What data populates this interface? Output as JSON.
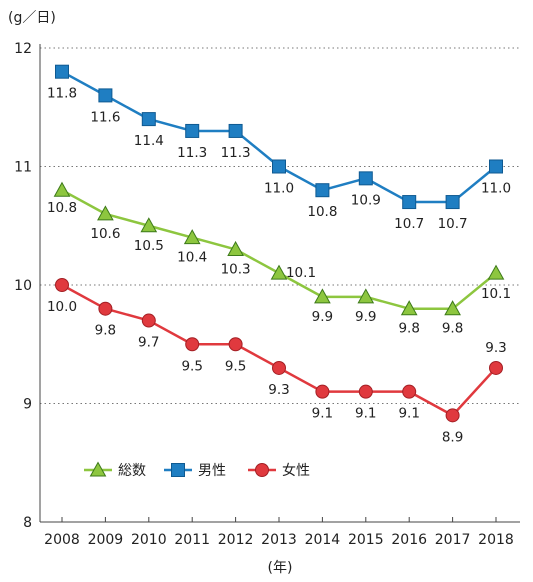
{
  "chart_data": {
    "type": "line",
    "y_unit_label": "(g／日)",
    "x_unit_label": "(年)",
    "ylim": [
      8,
      12
    ],
    "y_ticks": [
      "8",
      "9",
      "10",
      "11",
      "12"
    ],
    "categories": [
      "2008",
      "2009",
      "2010",
      "2011",
      "2012",
      "2013",
      "2014",
      "2015",
      "2016",
      "2017",
      "2018"
    ],
    "grid": "horizontal dotted",
    "legend_position": "lower-left inside plot",
    "series": [
      {
        "name": "総数",
        "color": "#8dc63f",
        "marker": "triangle",
        "values": [
          10.8,
          10.6,
          10.5,
          10.4,
          10.3,
          10.1,
          9.9,
          9.9,
          9.8,
          9.8,
          10.1
        ],
        "labels": [
          "10.8",
          "10.6",
          "10.5",
          "10.4",
          "10.3",
          "10.1",
          "9.9",
          "9.9",
          "9.8",
          "9.8",
          "10.1"
        ]
      },
      {
        "name": "男性",
        "color": "#1f7ec2",
        "marker": "square",
        "values": [
          11.8,
          11.6,
          11.4,
          11.3,
          11.3,
          11.0,
          10.8,
          10.9,
          10.7,
          10.7,
          11.0
        ],
        "labels": [
          "11.8",
          "11.6",
          "11.4",
          "11.3",
          "11.3",
          "11.0",
          "10.8",
          "10.9",
          "10.7",
          "10.7",
          "11.0"
        ]
      },
      {
        "name": "女性",
        "color": "#e0393e",
        "marker": "circle",
        "values": [
          10.0,
          9.8,
          9.7,
          9.5,
          9.5,
          9.3,
          9.1,
          9.1,
          9.1,
          8.9,
          9.3
        ],
        "labels": [
          "10.0",
          "9.8",
          "9.7",
          "9.5",
          "9.5",
          "9.3",
          "9.1",
          "9.1",
          "9.1",
          "8.9",
          "9.3"
        ]
      }
    ]
  }
}
